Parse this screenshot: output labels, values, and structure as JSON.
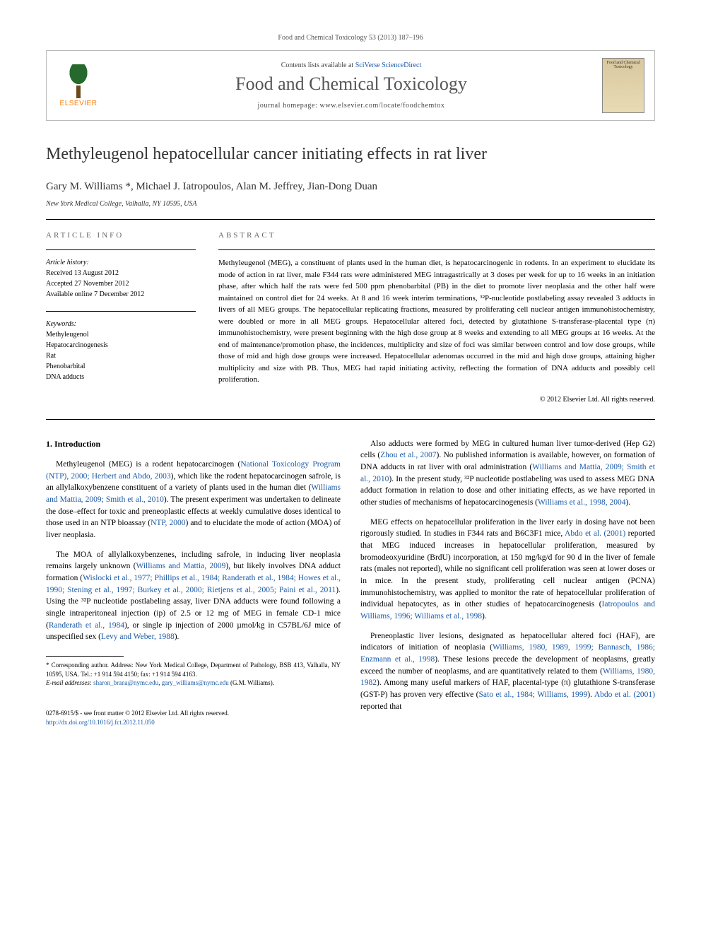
{
  "citation": "Food and Chemical Toxicology 53 (2013) 187–196",
  "header": {
    "contents_prefix": "Contents lists available at ",
    "contents_link": "SciVerse ScienceDirect",
    "journal": "Food and Chemical Toxicology",
    "homepage": "journal homepage: www.elsevier.com/locate/foodchemtox",
    "logo_left_text": "ELSEVIER",
    "logo_right_text": "Food and Chemical Toxicology"
  },
  "title": "Methyleugenol hepatocellular cancer initiating effects in rat liver",
  "authors": "Gary M. Williams *, Michael J. Iatropoulos, Alan M. Jeffrey, Jian-Dong Duan",
  "affiliation": "New York Medical College, Valhalla, NY 10595, USA",
  "article_info": {
    "label": "ARTICLE INFO",
    "history_label": "Article history:",
    "history": [
      "Received 13 August 2012",
      "Accepted 27 November 2012",
      "Available online 7 December 2012"
    ],
    "keywords_label": "Keywords:",
    "keywords": [
      "Methyleugenol",
      "Hepatocarcinogenesis",
      "Rat",
      "Phenobarbital",
      "DNA adducts"
    ]
  },
  "abstract": {
    "label": "ABSTRACT",
    "text": "Methyleugenol (MEG), a constituent of plants used in the human diet, is hepatocarcinogenic in rodents. In an experiment to elucidate its mode of action in rat liver, male F344 rats were administered MEG intragastrically at 3 doses per week for up to 16 weeks in an initiation phase, after which half the rats were fed 500 ppm phenobarbital (PB) in the diet to promote liver neoplasia and the other half were maintained on control diet for 24 weeks. At 8 and 16 week interim terminations, ³²P-nucleotide postlabeling assay revealed 3 adducts in livers of all MEG groups. The hepatocellular replicating fractions, measured by proliferating cell nuclear antigen immunohistochemistry, were doubled or more in all MEG groups. Hepatocellular altered foci, detected by glutathione S-transferase-placental type (π) immunohistochemistry, were present beginning with the high dose group at 8 weeks and extending to all MEG groups at 16 weeks. At the end of maintenance/promotion phase, the incidences, multiplicity and size of foci was similar between control and low dose groups, while those of mid and high dose groups were increased. Hepatocellular adenomas occurred in the mid and high dose groups, attaining higher multiplicity and size with PB. Thus, MEG had rapid initiating activity, reflecting the formation of DNA adducts and possibly cell proliferation.",
    "copyright": "© 2012 Elsevier Ltd. All rights reserved."
  },
  "intro": {
    "heading": "1. Introduction",
    "p1_a": "Methyleugenol (MEG) is a rodent hepatocarcinogen (",
    "p1_ref1": "National Toxicology Program (NTP), 2000; Herbert and Abdo, 2003",
    "p1_b": "), which like the rodent hepatocarcinogen safrole, is an allylalkoxybenzene constituent of a variety of plants used in the human diet (",
    "p1_ref2": "Williams and Mattia, 2009; Smith et al., 2010",
    "p1_c": "). The present experiment was undertaken to delineate the dose–effect for toxic and preneoplastic effects at weekly cumulative doses identical to those used in an NTP bioassay (",
    "p1_ref3": "NTP, 2000",
    "p1_d": ") and to elucidate the mode of action (MOA) of liver neoplasia.",
    "p2_a": "The MOA of allylalkoxybenzenes, including safrole, in inducing liver neoplasia remains largely unknown (",
    "p2_ref1": "Williams and Mattia, 2009",
    "p2_b": "), but likely involves DNA adduct formation (",
    "p2_ref2": "Wislocki et al., 1977; Phillips et al., 1984; Randerath et al., 1984; Howes et al., 1990; Stening et al., 1997; Burkey et al., 2000; Rietjens et al., 2005; Paini et al., 2011",
    "p2_c": "). Using the ³²P nucleotide postlabeling assay, liver DNA adducts were found following a single intraperitoneal injection (ip) of 2.5 or 12 mg of MEG in female CD-1 mice (",
    "p2_ref3": "Randerath et al., 1984",
    "p2_d": "), or single ip injection of 2000 µmol/kg in C57BL/6J mice of unspecified sex (",
    "p2_ref4": "Levy and Weber, 1988",
    "p2_e": ").",
    "p3_a": "Also adducts were formed by MEG in cultured human liver tumor-derived (Hep G2) cells (",
    "p3_ref1": "Zhou et al., 2007",
    "p3_b": "). No published information is available, however, on formation of DNA adducts in rat liver with oral administration (",
    "p3_ref2": "Williams and Mattia, 2009; Smith et al., 2010",
    "p3_c": "). In the present study, ³²P nucleotide postlabeling was used to assess MEG DNA adduct formation in relation to dose and other initiating effects, as we have reported in other studies of mechanisms of hepatocarcinogenesis (",
    "p3_ref3": "Williams et al., 1998, 2004",
    "p3_d": ").",
    "p4_a": "MEG effects on hepatocellular proliferation in the liver early in dosing have not been rigorously studied. In studies in F344 rats and B6C3F1 mice, ",
    "p4_ref1": "Abdo et al. (2001)",
    "p4_b": " reported that MEG induced increases in hepatocellular proliferation, measured by bromodeoxyuridine (BrdU) incorporation, at 150 mg/kg/d for 90 d in the liver of female rats (males not reported), while no significant cell proliferation was seen at lower doses or in mice. In the present study, proliferating cell nuclear antigen (PCNA) immunohistochemistry, was applied to monitor the rate of hepatocellular proliferation of individual hepatocytes, as in other studies of hepatocarcinogenesis (",
    "p4_ref2": "Iatropoulos and Williams, 1996; Williams et al., 1998",
    "p4_c": ").",
    "p5_a": "Preneoplastic liver lesions, designated as hepatocellular altered foci (HAF), are indicators of initiation of neoplasia (",
    "p5_ref1": "Williams, 1980, 1989, 1999; Bannasch, 1986; Enzmann et al., 1998",
    "p5_b": "). These lesions precede the development of neoplasms, greatly exceed the number of neoplasms, and are quantitatively related to them (",
    "p5_ref2": "Williams, 1980, 1982",
    "p5_c": "). Among many useful markers of HAF, placental-type (π) glutathione S-transferase (GST-P) has proven very effective (",
    "p5_ref3": "Sato et al., 1984; Williams, 1999",
    "p5_d": "). ",
    "p5_ref4": "Abdo et al. (2001)",
    "p5_e": " reported that"
  },
  "footnote": {
    "corr": "* Corresponding author. Address: New York Medical College, Department of Pathology, BSB 413, Valhalla, NY 10595, USA. Tel.: +1 914 594 4150; fax: +1 914 594 4163.",
    "email_label": "E-mail addresses: ",
    "email1": "sharon_brana@nymc.edu",
    "email_sep": ", ",
    "email2": "gary_williams@nymc.edu",
    "email_suffix": " (G.M. Williams)."
  },
  "footer": {
    "line1": "0278-6915/$ - see front matter © 2012 Elsevier Ltd. All rights reserved.",
    "line2": "http://dx.doi.org/10.1016/j.fct.2012.11.050"
  },
  "colors": {
    "link": "#1a5aa8",
    "elsevier_orange": "#ff7a00",
    "text": "#000000",
    "muted": "#555555",
    "border": "#000000"
  }
}
